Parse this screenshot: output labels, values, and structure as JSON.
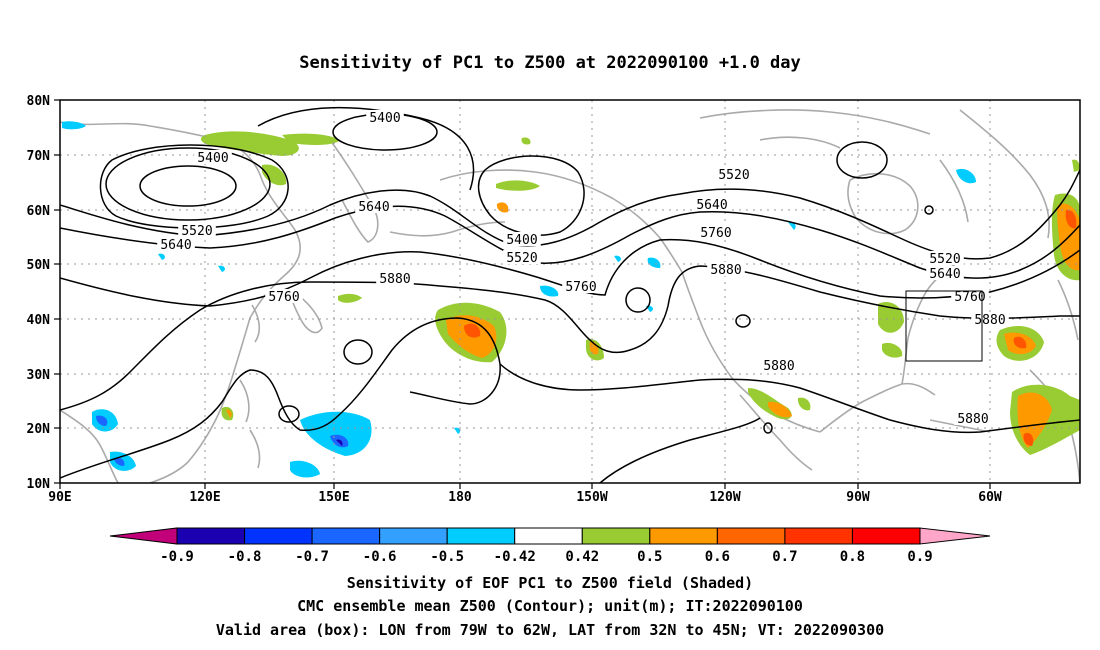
{
  "title": "Sensitivity of PC1 to Z500 at 2022090100 +1.0 day",
  "lat_labels": [
    "80N",
    "70N",
    "60N",
    "50N",
    "40N",
    "30N",
    "20N",
    "10N"
  ],
  "lon_labels": [
    "90E",
    "120E",
    "150E",
    "180",
    "150W",
    "120W",
    "90W",
    "60W"
  ],
  "contour_labels": [
    {
      "text": "5400"
    },
    {
      "text": "5400"
    },
    {
      "text": "5400"
    },
    {
      "text": "5520"
    },
    {
      "text": "5520"
    },
    {
      "text": "5520"
    },
    {
      "text": "5520"
    },
    {
      "text": "5640"
    },
    {
      "text": "5640"
    },
    {
      "text": "5640"
    },
    {
      "text": "5640"
    },
    {
      "text": "5760"
    },
    {
      "text": "5760"
    },
    {
      "text": "5760"
    },
    {
      "text": "5760"
    },
    {
      "text": "5880"
    },
    {
      "text": "5880"
    },
    {
      "text": "5880"
    },
    {
      "text": "5880"
    },
    {
      "text": "5880"
    }
  ],
  "colorbar": {
    "colors": [
      "#1a00b0",
      "#0033ff",
      "#1a66ff",
      "#33a0ff",
      "#00ccff",
      "#ffffff",
      "#99cc33",
      "#ff9900",
      "#ff6600",
      "#ff3300",
      "#ff0000"
    ],
    "left_triangle_color": "#c2007a",
    "right_triangle_color": "#ffa6c9",
    "labels": [
      "-0.9",
      "-0.8",
      "-0.7",
      "-0.6",
      "-0.5",
      "-0.42",
      "0.42",
      "0.5",
      "0.6",
      "0.7",
      "0.8",
      "0.9"
    ]
  },
  "captions": [
    "Sensitivity of EOF PC1 to Z500 field (Shaded)",
    "CMC ensemble mean Z500 (Contour); unit(m); IT:2022090100",
    "Valid area (box): LON from 79W to 62W, LAT from 32N to 45N; VT: 2022090300"
  ],
  "style": {
    "coast_color": "#aaaaaa",
    "grid_color": "#999999",
    "contour_color": "#000000",
    "shade_green": "#99cc33",
    "shade_orange": "#ff9900",
    "shade_red": "#ff5500",
    "shade_cyan": "#00ccff",
    "shade_blue": "#1a66ff"
  }
}
